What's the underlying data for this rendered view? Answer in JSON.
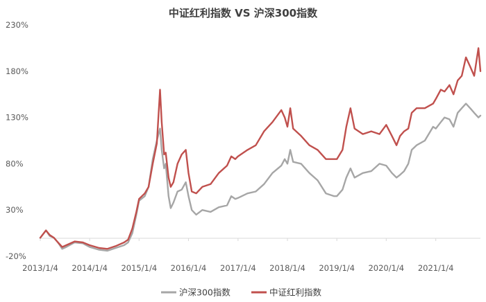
{
  "chart_data": {
    "type": "line",
    "title": "中证红利指数 VS 沪深300指数",
    "xlabel": "",
    "ylabel": "",
    "x_tick_labels": [
      "2013/1/4",
      "2014/1/4",
      "2015/1/4",
      "2016/1/4",
      "2017/1/4",
      "2018/1/4",
      "2019/1/4",
      "2020/1/4",
      "2021/1/4"
    ],
    "y_tick_labels": [
      "-20%",
      "30%",
      "80%",
      "130%",
      "180%",
      "230%"
    ],
    "y_ticks": [
      -20,
      30,
      80,
      130,
      180,
      230
    ],
    "ylim": [
      -20,
      230
    ],
    "x_range": [
      "2013/1/4",
      "2021/11/30"
    ],
    "legend_position": "bottom",
    "grid": false,
    "x_unit": "date",
    "y_unit": "%",
    "x": [
      "2013/1/4",
      "2013/2/15",
      "2013/3/15",
      "2013/4/15",
      "2013/5/15",
      "2013/6/15",
      "2013/7/15",
      "2013/9/15",
      "2013/11/15",
      "2014/1/4",
      "2014/3/15",
      "2014/5/15",
      "2014/7/15",
      "2014/9/15",
      "2014/10/15",
      "2014/11/15",
      "2014/12/15",
      "2015/1/4",
      "2015/2/15",
      "2015/3/15",
      "2015/4/15",
      "2015/5/15",
      "2015/6/8",
      "2015/6/20",
      "2015/7/8",
      "2015/7/20",
      "2015/8/10",
      "2015/8/26",
      "2015/9/15",
      "2015/10/15",
      "2015/11/15",
      "2015/12/15",
      "2016/1/4",
      "2016/1/28",
      "2016/3/1",
      "2016/4/15",
      "2016/6/15",
      "2016/8/15",
      "2016/10/15",
      "2016/11/15",
      "2016/12/15",
      "2017/1/4",
      "2017/3/15",
      "2017/5/15",
      "2017/7/15",
      "2017/9/15",
      "2017/11/20",
      "2017/12/15",
      "2018/1/4",
      "2018/1/25",
      "2018/2/15",
      "2018/4/15",
      "2018/6/15",
      "2018/8/15",
      "2018/10/15",
      "2018/12/15",
      "2019/1/4",
      "2019/2/15",
      "2019/3/15",
      "2019/4/15",
      "2019/5/15",
      "2019/7/15",
      "2019/9/15",
      "2019/11/15",
      "2020/1/4",
      "2020/2/15",
      "2020/3/20",
      "2020/4/15",
      "2020/5/15",
      "2020/6/15",
      "2020/7/10",
      "2020/8/15",
      "2020/10/15",
      "2020/12/15",
      "2021/1/4",
      "2021/2/10",
      "2021/3/10",
      "2021/4/15",
      "2021/5/15",
      "2021/6/15",
      "2021/7/15",
      "2021/8/15",
      "2021/9/15",
      "2021/10/15",
      "2021/11/15",
      "2021/11/30"
    ],
    "series": [
      {
        "name": "沪深300指数",
        "color": "#A6A6A6",
        "values": [
          0,
          8,
          2,
          0,
          -5,
          -12,
          -10,
          -5,
          -6,
          -10,
          -13,
          -14,
          -11,
          -8,
          -5,
          5,
          25,
          40,
          45,
          55,
          85,
          105,
          118,
          95,
          75,
          80,
          45,
          32,
          38,
          50,
          52,
          60,
          45,
          30,
          25,
          30,
          28,
          33,
          35,
          45,
          42,
          43,
          48,
          50,
          58,
          70,
          78,
          85,
          80,
          95,
          82,
          80,
          70,
          62,
          48,
          45,
          45,
          52,
          65,
          75,
          65,
          70,
          72,
          80,
          78,
          70,
          65,
          68,
          72,
          80,
          95,
          100,
          105,
          120,
          118,
          125,
          130,
          128,
          120,
          135,
          140,
          145,
          140,
          135,
          130,
          132
        ]
      },
      {
        "name": "中证红利指数",
        "color": "#C0504D",
        "values": [
          0,
          8,
          3,
          0,
          -5,
          -10,
          -8,
          -4,
          -5,
          -8,
          -11,
          -12,
          -9,
          -5,
          -2,
          10,
          28,
          42,
          48,
          55,
          80,
          102,
          160,
          125,
          90,
          92,
          65,
          55,
          60,
          80,
          90,
          95,
          70,
          50,
          48,
          55,
          58,
          70,
          78,
          88,
          85,
          88,
          95,
          100,
          115,
          125,
          138,
          130,
          120,
          140,
          118,
          110,
          100,
          95,
          85,
          85,
          85,
          95,
          120,
          140,
          118,
          112,
          115,
          112,
          122,
          110,
          100,
          110,
          115,
          118,
          135,
          140,
          140,
          145,
          150,
          160,
          158,
          165,
          155,
          170,
          175,
          195,
          185,
          175,
          205,
          180
        ]
      }
    ]
  }
}
